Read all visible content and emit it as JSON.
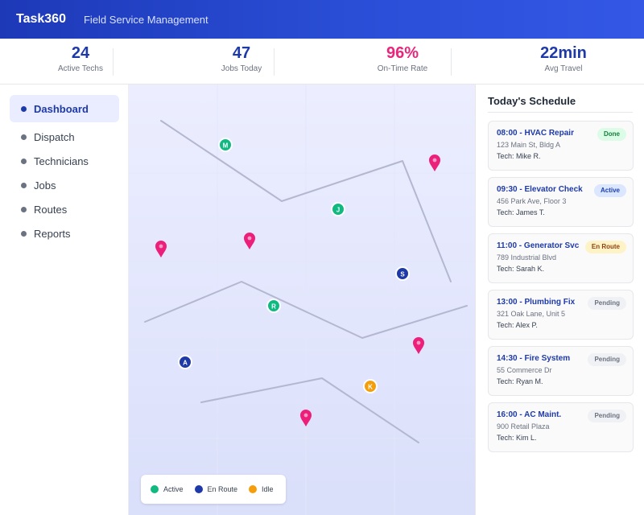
{
  "header": {
    "brand": "Task360",
    "subtitle": "Field Service Management"
  },
  "stats": [
    {
      "value": "24",
      "label": "Active Techs"
    },
    {
      "value": "47",
      "label": "Jobs Today"
    },
    {
      "value": "96%",
      "label": "On-Time Rate"
    },
    {
      "value": "22min",
      "label": "Avg Travel"
    }
  ],
  "sidebar": {
    "items": [
      {
        "label": "Dashboard"
      },
      {
        "label": "Dispatch"
      },
      {
        "label": "Technicians"
      },
      {
        "label": "Jobs"
      },
      {
        "label": "Routes"
      },
      {
        "label": "Reports"
      }
    ]
  },
  "map": {
    "markers": [
      {
        "letter": "M",
        "status": "active"
      },
      {
        "letter": "J",
        "status": "active"
      },
      {
        "letter": "S",
        "status": "en-route"
      },
      {
        "letter": "R",
        "status": "active"
      },
      {
        "letter": "A",
        "status": "en-route"
      },
      {
        "letter": "K",
        "status": "idle"
      }
    ],
    "legend": [
      {
        "label": "Active",
        "color": "#10b981"
      },
      {
        "label": "En Route",
        "color": "#1e3aa8"
      },
      {
        "label": "Idle",
        "color": "#f59e0b"
      }
    ],
    "colors": {
      "active": "#10b981",
      "en-route": "#1e3aa8",
      "idle": "#f59e0b",
      "pin": "#ec1f7a",
      "route": "#aeb3cc"
    }
  },
  "schedule": {
    "title": "Today's Schedule",
    "items": [
      {
        "title": "08:00 - HVAC Repair",
        "address": "123 Main St, Bldg A",
        "tech": "Tech: Mike R.",
        "status": "Done"
      },
      {
        "title": "09:30 - Elevator Check",
        "address": "456 Park Ave, Floor 3",
        "tech": "Tech: James T.",
        "status": "Active"
      },
      {
        "title": "11:00 - Generator Svc",
        "address": "789 Industrial Blvd",
        "tech": "Tech: Sarah K.",
        "status": "En Route"
      },
      {
        "title": "13:00 - Plumbing Fix",
        "address": "321 Oak Lane, Unit 5",
        "tech": "Tech: Alex P.",
        "status": "Pending"
      },
      {
        "title": "14:30 - Fire System",
        "address": "55 Commerce Dr",
        "tech": "Tech: Ryan M.",
        "status": "Pending"
      },
      {
        "title": "16:00 - AC Maint.",
        "address": "900 Retail Plaza",
        "tech": "Tech: Kim L.",
        "status": "Pending"
      }
    ],
    "badge_colors": {
      "Done": {
        "bg": "#dcfce7",
        "fg": "#15803d"
      },
      "Active": {
        "bg": "#dbe6ff",
        "fg": "#1e40af"
      },
      "En Route": {
        "bg": "#fef3c7",
        "fg": "#92400e"
      },
      "Pending": {
        "bg": "#f0f1f4",
        "fg": "#6b7280"
      }
    }
  }
}
